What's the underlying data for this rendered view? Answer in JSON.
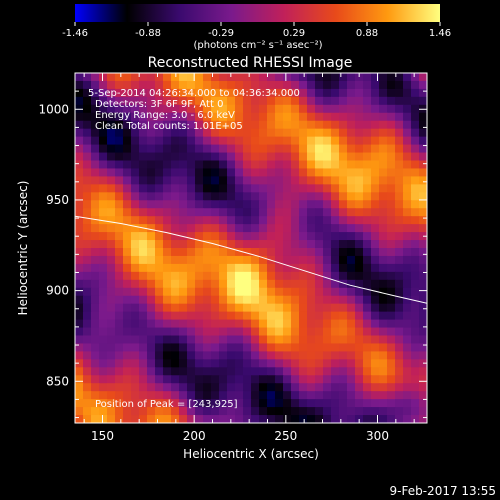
{
  "colorbar": {
    "ticks": [
      "-1.46",
      "-0.88",
      "-0.29",
      "0.29",
      "0.88",
      "1.46"
    ],
    "min": -1.46,
    "max": 1.46,
    "colormap": [
      "#0000ff",
      "#000000",
      "#3a0a6e",
      "#7a1a8c",
      "#c0205a",
      "#e84a1a",
      "#ff9a10",
      "#ffff80"
    ]
  },
  "units_label": "(photons cm⁻² s⁻¹ asec⁻²)",
  "chart_data": {
    "type": "heatmap",
    "title": "Reconstructed RHESSI Image",
    "xlabel": "Heliocentric X (arcsec)",
    "ylabel": "Heliocentric Y (arcsec)",
    "xlim": [
      135,
      327
    ],
    "ylim": [
      827,
      1020
    ],
    "xticks": [
      "150",
      "200",
      "250",
      "300"
    ],
    "xtick_values": [
      150,
      200,
      250,
      300
    ],
    "yticks": [
      "850",
      "900",
      "950",
      "1000"
    ],
    "ytick_values": [
      850,
      900,
      950,
      1000
    ],
    "annotations": [
      "5-Sep-2014 04:26:34.000 to 04:36:34.000",
      "Detectors: 3F 6F 9F, Att 0",
      "Energy Range: 3.0 - 6.0 keV",
      "Clean     Total counts: 1.01E+05"
    ],
    "peak_label": "Position of Peak = [243,925]",
    "peak": [
      243,
      925
    ],
    "limb_curve": [
      [
        135,
        941
      ],
      [
        160,
        937
      ],
      [
        185,
        932
      ],
      [
        210,
        926
      ],
      [
        235,
        919
      ],
      [
        260,
        911
      ],
      [
        285,
        903
      ],
      [
        310,
        897
      ],
      [
        327,
        893
      ]
    ]
  },
  "footer_timestamp": "9-Feb-2017 13:55"
}
